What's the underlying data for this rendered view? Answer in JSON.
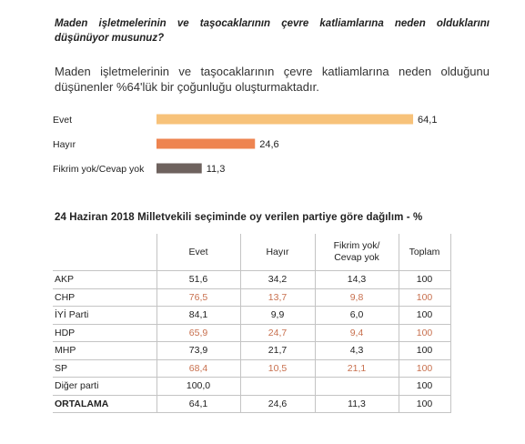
{
  "question": "Maden işletmelerinin ve taşocaklarının çevre katliamlarına neden olduklarını düşünüyor musunuz?",
  "finding": "Maden işletmelerinin ve taşocaklarının çevre katliamlarına neden olduğunu düşünenler %64'lük bir çoğunluğu oluşturmaktadır.",
  "chart_data": {
    "type": "bar",
    "orientation": "horizontal",
    "categories": [
      "Evet",
      "Hayır",
      "Fikrim yok/Cevap yok"
    ],
    "values": [
      64.1,
      24.6,
      11.3
    ],
    "value_labels": [
      "64,1",
      "24,6",
      "11,3"
    ],
    "colors": [
      "#f7c27a",
      "#ee8450",
      "#6e625e"
    ],
    "title": "",
    "xlabel": "",
    "ylabel": ""
  },
  "table": {
    "title": "24 Haziran 2018 Milletvekili seçiminde oy verilen partiye göre dağılım - %",
    "headers": [
      "Evet",
      "Hayır",
      "Fikrim yok/ Cevap yok",
      "Toplam"
    ],
    "rows": [
      {
        "party": "AKP",
        "values": [
          "51,6",
          "34,2",
          "14,3",
          "100"
        ]
      },
      {
        "party": "CHP",
        "values": [
          "76,5",
          "13,7",
          "9,8",
          "100"
        ]
      },
      {
        "party": "İYİ Parti",
        "values": [
          "84,1",
          "9,9",
          "6,0",
          "100"
        ]
      },
      {
        "party": "HDP",
        "values": [
          "65,9",
          "24,7",
          "9,4",
          "100"
        ]
      },
      {
        "party": "MHP",
        "values": [
          "73,9",
          "21,7",
          "4,3",
          "100"
        ]
      },
      {
        "party": "SP",
        "values": [
          "68,4",
          "10,5",
          "21,1",
          "100"
        ]
      },
      {
        "party": "Diğer parti",
        "values": [
          "100,0",
          "",
          "",
          "100"
        ]
      },
      {
        "party": "ORTALAMA",
        "values": [
          "64,1",
          "24,6",
          "11,3",
          "100"
        ]
      }
    ]
  }
}
